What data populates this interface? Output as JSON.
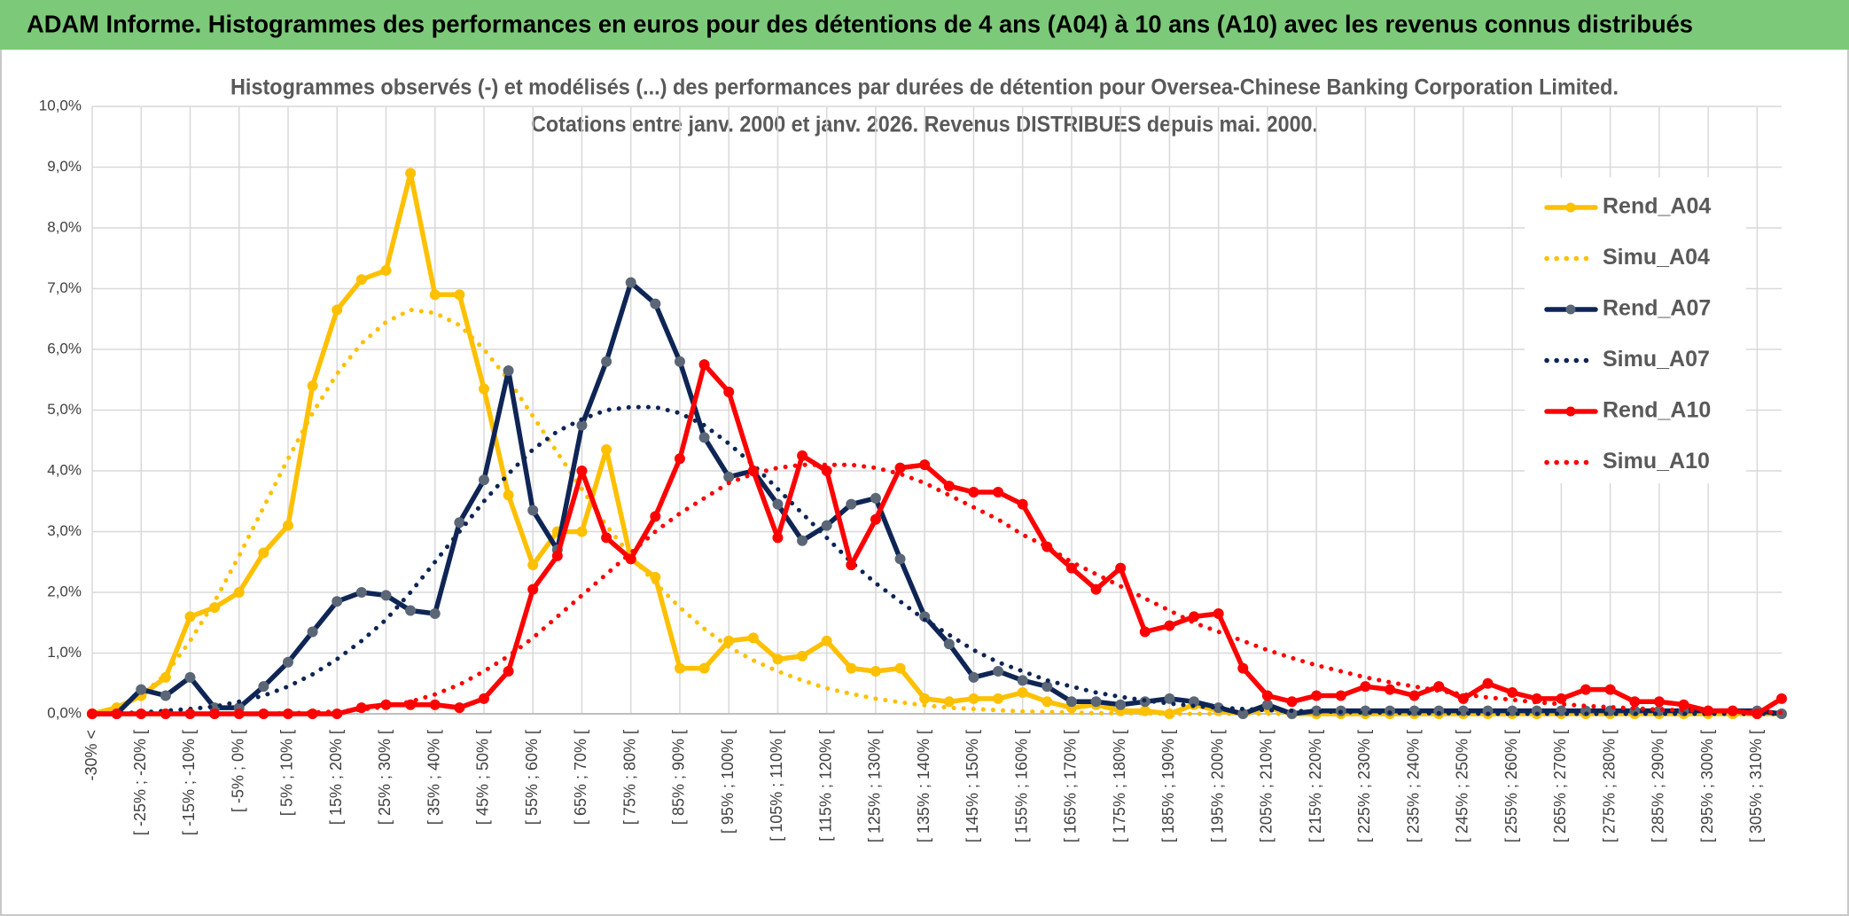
{
  "chart_data": {
    "type": "line",
    "title": "ADAM Informe. Histogrammes des performances en euros pour des détentions de 4 ans (A04) à 10 ans (A10) avec les revenus connus distribués",
    "subtitle": [
      "Histogrammes observés (-) et modélisés (...) des performances par durées de détention pour Oversea-Chinese Banking Corporation Limited.",
      "Cotations entre janv. 2000 et janv. 2026. Revenus DISTRIBUES depuis mai. 2000."
    ],
    "categories": [
      "-30% <",
      null,
      "[ -25% ; -20% [",
      null,
      "[ -15% ; -10% [",
      null,
      "[ -5% ; 0% [",
      null,
      "[ 5% ; 10% [",
      null,
      "[ 15% ; 20% [",
      null,
      "[ 25% ; 30% [",
      null,
      "[ 35% ; 40% [",
      null,
      "[ 45% ; 50% [",
      null,
      "[ 55% ; 60% [",
      null,
      "[ 65% ; 70% [",
      null,
      "[ 75% ; 80% [",
      null,
      "[ 85% ; 90% [",
      null,
      "[ 95% ; 100% [",
      null,
      "[ 105% ; 110% [",
      null,
      "[ 115% ; 120% [",
      null,
      "[ 125% ; 130% [",
      null,
      "[ 135% ; 140% [",
      null,
      "[ 145% ; 150% [",
      null,
      "[ 155% ; 160% [",
      null,
      "[ 165% ; 170% [",
      null,
      "[ 175% ; 180% [",
      null,
      "[ 185% ; 190% [",
      null,
      "[ 195% ; 200% [",
      null,
      "[ 205% ; 210% [",
      null,
      "[ 215% ; 220% [",
      null,
      "[ 225% ; 230% [",
      null,
      "[ 235% ; 240% [",
      null,
      "[ 245% ; 250% [",
      null,
      "[ 255% ; 260% [",
      null,
      "[ 265% ; 270% [",
      null,
      "[ 275% ; 280% [",
      null,
      "[ 285% ; 290% [",
      null,
      "[ 295% ; 300% [",
      null,
      "[ 305% ; 310% [",
      null
    ],
    "ylim": [
      0,
      10
    ],
    "yticks": [
      {
        "value": 0,
        "label": "0,0%"
      },
      {
        "value": 1,
        "label": "1,0%"
      },
      {
        "value": 2,
        "label": "2,0%"
      },
      {
        "value": 3,
        "label": "3,0%"
      },
      {
        "value": 4,
        "label": "4,0%"
      },
      {
        "value": 5,
        "label": "5,0%"
      },
      {
        "value": 6,
        "label": "6,0%"
      },
      {
        "value": 7,
        "label": "7,0%"
      },
      {
        "value": 8,
        "label": "8,0%"
      },
      {
        "value": 9,
        "label": "9,0%"
      },
      {
        "value": 10,
        "label": "10,0%"
      }
    ],
    "grid": true,
    "legend": "right",
    "series": [
      {
        "name": "Rend_A04",
        "color": "#ffc000",
        "dash": "solid",
        "marker": true,
        "marker_color": "#ffc000",
        "values": [
          0,
          0.1,
          0.3,
          0.6,
          1.6,
          1.75,
          2.0,
          2.65,
          3.1,
          5.4,
          6.65,
          7.15,
          7.3,
          8.9,
          6.9,
          6.9,
          5.35,
          3.6,
          2.45,
          3.0,
          3.0,
          4.35,
          2.55,
          2.25,
          0.75,
          0.75,
          1.2,
          1.25,
          0.9,
          0.95,
          1.2,
          0.75,
          0.7,
          0.75,
          0.25,
          0.2,
          0.25,
          0.25,
          0.35,
          0.2,
          0.1,
          0.15,
          0.05,
          0.05,
          0,
          0.15,
          0.05,
          0,
          0.1,
          0,
          0,
          0,
          0,
          0,
          0,
          0,
          0,
          0,
          0,
          0,
          0,
          0,
          0,
          0,
          0,
          0,
          0,
          0,
          0,
          0
        ]
      },
      {
        "name": "Simu_A04",
        "color": "#ffc000",
        "dash": "dotted",
        "marker": false,
        "values": [
          0.02,
          0.08,
          0.3,
          0.65,
          1.2,
          1.85,
          2.6,
          3.4,
          4.2,
          4.95,
          5.6,
          6.1,
          6.45,
          6.65,
          6.6,
          6.4,
          6.0,
          5.5,
          4.9,
          4.3,
          3.7,
          3.1,
          2.6,
          2.15,
          1.75,
          1.4,
          1.1,
          0.88,
          0.7,
          0.55,
          0.42,
          0.33,
          0.25,
          0.19,
          0.14,
          0.1,
          0.08,
          0.06,
          0.04,
          0.03,
          0.02,
          0.01,
          0.01,
          0.01,
          0,
          0,
          0,
          0,
          0,
          0,
          0,
          0,
          0,
          0,
          0,
          0,
          0,
          0,
          0,
          0,
          0,
          0,
          0,
          0,
          0,
          0,
          0,
          0,
          0,
          0
        ]
      },
      {
        "name": "Rend_A07",
        "color": "#0e2555",
        "dash": "solid",
        "marker": true,
        "marker_color": "#5b6777",
        "values": [
          0,
          0,
          0.4,
          0.3,
          0.6,
          0.1,
          0.1,
          0.45,
          0.85,
          1.35,
          1.85,
          2.0,
          1.95,
          1.7,
          1.65,
          3.15,
          3.85,
          5.65,
          3.35,
          2.7,
          4.75,
          5.8,
          7.1,
          6.75,
          5.8,
          4.55,
          3.9,
          4.0,
          3.45,
          2.85,
          3.1,
          3.45,
          3.55,
          2.55,
          1.6,
          1.15,
          0.6,
          0.7,
          0.55,
          0.45,
          0.2,
          0.2,
          0.15,
          0.2,
          0.25,
          0.2,
          0.1,
          0,
          0.15,
          0,
          0.05,
          0.05,
          0.05,
          0.05,
          0.05,
          0.05,
          0.05,
          0.05,
          0.05,
          0.05,
          0.05,
          0.05,
          0.05,
          0.05,
          0.05,
          0.05,
          0.05,
          0.05,
          0.05,
          0
        ]
      },
      {
        "name": "Simu_A07",
        "color": "#0e2555",
        "dash": "dotted",
        "marker": false,
        "values": [
          0,
          0.01,
          0.02,
          0.05,
          0.08,
          0.12,
          0.2,
          0.3,
          0.45,
          0.65,
          0.9,
          1.2,
          1.55,
          2.0,
          2.5,
          3.0,
          3.5,
          3.95,
          4.35,
          4.65,
          4.85,
          5.0,
          5.05,
          5.05,
          4.95,
          4.75,
          4.45,
          4.1,
          3.7,
          3.3,
          2.9,
          2.5,
          2.15,
          1.85,
          1.55,
          1.3,
          1.05,
          0.85,
          0.7,
          0.55,
          0.45,
          0.35,
          0.28,
          0.22,
          0.17,
          0.13,
          0.1,
          0.08,
          0.06,
          0.05,
          0.04,
          0.03,
          0.02,
          0.02,
          0.01,
          0.01,
          0.01,
          0,
          0,
          0,
          0,
          0,
          0,
          0,
          0,
          0,
          0,
          0,
          0,
          0
        ]
      },
      {
        "name": "Rend_A10",
        "color": "#ff0000",
        "dash": "solid",
        "marker": true,
        "marker_color": "#ff0000",
        "values": [
          0,
          0,
          0,
          0,
          0,
          0,
          0,
          0,
          0,
          0,
          0,
          0.1,
          0.15,
          0.15,
          0.15,
          0.1,
          0.25,
          0.7,
          2.05,
          2.6,
          4.0,
          2.9,
          2.55,
          3.25,
          4.2,
          5.75,
          5.3,
          4.0,
          2.9,
          4.25,
          4.0,
          2.45,
          3.2,
          4.05,
          4.1,
          3.75,
          3.65,
          3.65,
          3.45,
          2.75,
          2.4,
          2.05,
          2.4,
          1.35,
          1.45,
          1.6,
          1.65,
          0.75,
          0.3,
          0.2,
          0.3,
          0.3,
          0.45,
          0.4,
          0.3,
          0.45,
          0.25,
          0.5,
          0.35,
          0.25,
          0.25,
          0.4,
          0.4,
          0.2,
          0.2,
          0.15,
          0.05,
          0.05,
          0,
          0.25
        ]
      },
      {
        "name": "Simu_A10",
        "color": "#ff0000",
        "dash": "dotted",
        "marker": false,
        "values": [
          0,
          0,
          0,
          0,
          0,
          0,
          0,
          0,
          0.01,
          0.02,
          0.04,
          0.07,
          0.12,
          0.2,
          0.32,
          0.48,
          0.7,
          0.95,
          1.25,
          1.6,
          1.95,
          2.3,
          2.65,
          3.0,
          3.3,
          3.55,
          3.8,
          3.95,
          4.05,
          4.1,
          4.1,
          4.1,
          4.05,
          3.95,
          3.8,
          3.6,
          3.4,
          3.2,
          2.95,
          2.75,
          2.5,
          2.3,
          2.1,
          1.9,
          1.7,
          1.5,
          1.35,
          1.2,
          1.05,
          0.92,
          0.8,
          0.7,
          0.6,
          0.52,
          0.45,
          0.38,
          0.32,
          0.27,
          0.23,
          0.19,
          0.16,
          0.13,
          0.11,
          0.09,
          0.07,
          0.06,
          0.05,
          0.04,
          0.03,
          0.02
        ]
      }
    ]
  }
}
